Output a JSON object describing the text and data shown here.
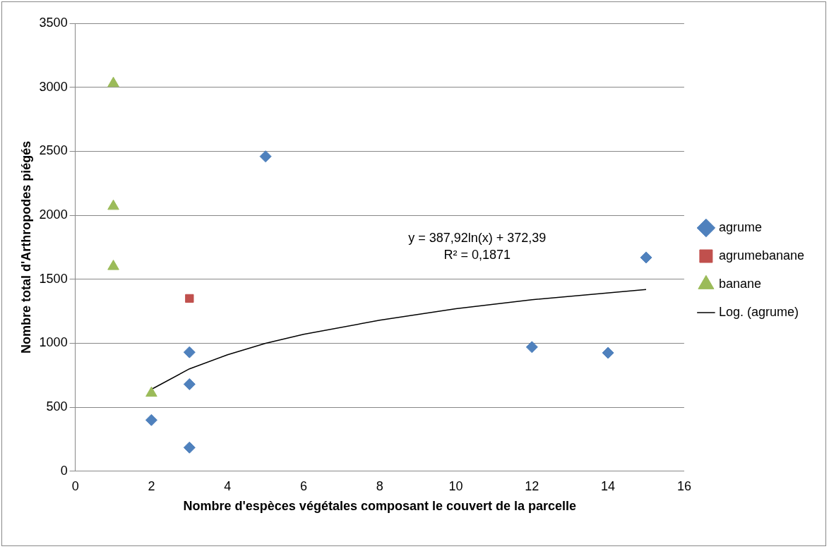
{
  "chart_data": {
    "type": "scatter",
    "xlabel": "Nombre d'espèces végétales composant le couvert de la parcelle",
    "ylabel": "Nombre total d'Arthropodes piégés",
    "xlim": [
      0,
      16
    ],
    "xticks": [
      0,
      2,
      4,
      6,
      8,
      10,
      12,
      14,
      16
    ],
    "ylim": [
      0,
      3500
    ],
    "yticks": [
      0,
      500,
      1000,
      1500,
      2000,
      2500,
      3000,
      3500
    ],
    "grid": "y",
    "legend": "right",
    "series": [
      {
        "name": "agrume",
        "color": "#4f81bd",
        "marker": "diamond",
        "x": [
          2,
          3,
          3,
          3,
          5,
          12,
          14,
          15
        ],
        "values": [
          400,
          185,
          680,
          930,
          2460,
          970,
          925,
          1670
        ]
      },
      {
        "name": "agrumebanane",
        "color": "#c0504d",
        "marker": "square",
        "x": [
          3
        ],
        "values": [
          1350
        ]
      },
      {
        "name": "banane",
        "color": "#9bbb59",
        "marker": "triangle",
        "x": [
          1,
          1,
          1,
          2
        ],
        "values": [
          3030,
          2070,
          1600,
          610
        ]
      },
      {
        "name": "Log. (agrume)",
        "type": "line",
        "color": "#000000",
        "marker": "none",
        "x": [
          2,
          3,
          4,
          5,
          6,
          8,
          10,
          12,
          15
        ],
        "values": [
          640,
          800,
          910,
          1000,
          1070,
          1180,
          1270,
          1340,
          1420
        ]
      }
    ],
    "annotations": [
      "y = 387,92ln(x) + 372,39",
      "R² = 0,1871"
    ]
  }
}
